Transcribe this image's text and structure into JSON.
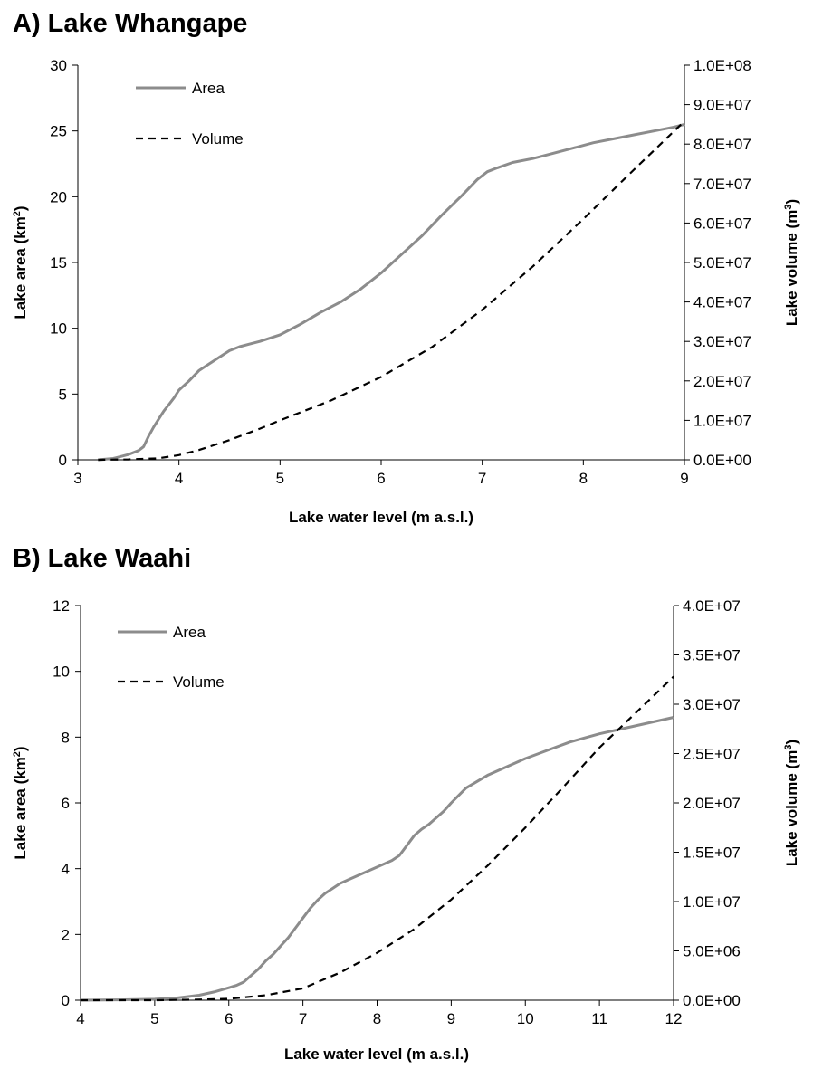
{
  "chart_data": [
    {
      "type": "line",
      "title": "A) Lake Whangape",
      "xlabel": "Lake water level (m a.s.l.)",
      "ylabel": "Lake area (km",
      "ylabel_sup": "2",
      "y2label": "Lake volume (m",
      "y2label_sup": "3",
      "xlim": [
        3,
        9
      ],
      "ylim": [
        0,
        30
      ],
      "y2lim": [
        0,
        100000000
      ],
      "xticks": [
        "3",
        "4",
        "5",
        "6",
        "7",
        "8",
        "9"
      ],
      "yticks": [
        "0",
        "5",
        "10",
        "15",
        "20",
        "25",
        "30"
      ],
      "y2ticks": [
        "0.0E+00",
        "1.0E+07",
        "2.0E+07",
        "3.0E+07",
        "4.0E+07",
        "5.0E+07",
        "6.0E+07",
        "7.0E+07",
        "8.0E+07",
        "9.0E+07",
        "1.0E+08"
      ],
      "legend": "top-left",
      "series": [
        {
          "name": "Area",
          "axis": "left",
          "color": "#8c8c8c",
          "style": "solid",
          "x": [
            3.2,
            3.35,
            3.5,
            3.6,
            3.65,
            3.7,
            3.75,
            3.8,
            3.85,
            3.9,
            3.95,
            4.0,
            4.1,
            4.2,
            4.3,
            4.4,
            4.5,
            4.6,
            4.7,
            4.8,
            5.0,
            5.2,
            5.4,
            5.6,
            5.8,
            6.0,
            6.2,
            6.4,
            6.6,
            6.8,
            6.95,
            7.05,
            7.15,
            7.3,
            7.5,
            7.7,
            7.9,
            8.1,
            8.3,
            8.5,
            8.7,
            8.9,
            9.0
          ],
          "y": [
            0,
            0.1,
            0.4,
            0.7,
            1.0,
            1.8,
            2.5,
            3.1,
            3.7,
            4.2,
            4.7,
            5.3,
            6.0,
            6.8,
            7.3,
            7.8,
            8.3,
            8.6,
            8.8,
            9.0,
            9.5,
            10.3,
            11.2,
            12.0,
            13.0,
            14.2,
            15.6,
            17.0,
            18.6,
            20.1,
            21.3,
            21.9,
            22.2,
            22.6,
            22.9,
            23.3,
            23.7,
            24.1,
            24.4,
            24.7,
            25.0,
            25.3,
            25.5
          ]
        },
        {
          "name": "Volume",
          "axis": "right",
          "color": "#000000",
          "style": "dashed",
          "x": [
            3.2,
            3.5,
            3.8,
            4.0,
            4.2,
            4.5,
            4.8,
            5.0,
            5.5,
            6.0,
            6.5,
            7.0,
            7.5,
            8.0,
            8.5,
            9.0
          ],
          "y": [
            0,
            100000,
            400000,
            1200000,
            2500000,
            5000000,
            7900000,
            10000000,
            15000000,
            21000000,
            28500000,
            38000000,
            49000000,
            61000000,
            73500000,
            85800000
          ]
        }
      ]
    },
    {
      "type": "line",
      "title": "B) Lake Waahi",
      "xlabel": "Lake water level (m a.s.l.)",
      "ylabel": "Lake area (km",
      "ylabel_sup": "2",
      "y2label": "Lake volume (m",
      "y2label_sup": "3",
      "xlim": [
        4,
        12
      ],
      "ylim": [
        0,
        12
      ],
      "y2lim": [
        0,
        40000000
      ],
      "xticks": [
        "4",
        "5",
        "6",
        "7",
        "8",
        "9",
        "10",
        "11",
        "12"
      ],
      "yticks": [
        "0",
        "2",
        "4",
        "6",
        "8",
        "10",
        "12"
      ],
      "y2ticks": [
        "0.0E+00",
        "5.0E+06",
        "1.0E+07",
        "1.5E+07",
        "2.0E+07",
        "2.5E+07",
        "3.0E+07",
        "3.5E+07",
        "4.0E+07"
      ],
      "legend": "top-left",
      "series": [
        {
          "name": "Area",
          "axis": "left",
          "color": "#8c8c8c",
          "style": "solid",
          "x": [
            4.0,
            4.5,
            5.0,
            5.3,
            5.6,
            5.8,
            6.0,
            6.1,
            6.2,
            6.3,
            6.4,
            6.5,
            6.6,
            6.7,
            6.8,
            6.9,
            7.0,
            7.1,
            7.2,
            7.3,
            7.4,
            7.5,
            7.6,
            7.7,
            7.8,
            7.9,
            8.0,
            8.1,
            8.2,
            8.3,
            8.4,
            8.5,
            8.6,
            8.7,
            8.8,
            8.9,
            9.0,
            9.2,
            9.5,
            9.8,
            10.0,
            10.3,
            10.6,
            11.0,
            11.5,
            12.0
          ],
          "y": [
            0,
            0.01,
            0.03,
            0.07,
            0.15,
            0.25,
            0.38,
            0.45,
            0.55,
            0.75,
            0.95,
            1.2,
            1.4,
            1.65,
            1.9,
            2.2,
            2.5,
            2.8,
            3.05,
            3.25,
            3.4,
            3.55,
            3.65,
            3.75,
            3.85,
            3.95,
            4.05,
            4.15,
            4.25,
            4.4,
            4.7,
            5.0,
            5.2,
            5.35,
            5.55,
            5.75,
            6.0,
            6.45,
            6.85,
            7.15,
            7.35,
            7.6,
            7.85,
            8.1,
            8.35,
            8.6
          ]
        },
        {
          "name": "Volume",
          "axis": "right",
          "color": "#000000",
          "style": "dashed",
          "x": [
            4.0,
            5.0,
            5.5,
            6.0,
            6.5,
            7.0,
            7.5,
            8.0,
            8.5,
            9.0,
            9.5,
            10.0,
            10.5,
            11.0,
            11.5,
            12.0
          ],
          "y": [
            0,
            0,
            50000,
            150000,
            500000,
            1200000,
            2800000,
            4800000,
            7200000,
            10200000,
            13700000,
            17500000,
            21500000,
            25600000,
            29200000,
            32800000
          ]
        }
      ]
    }
  ]
}
